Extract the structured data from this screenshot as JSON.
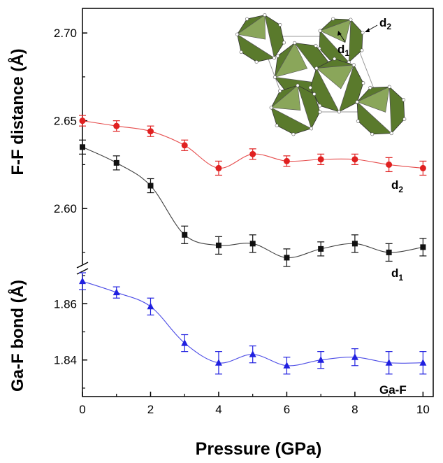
{
  "chart_data": {
    "type": "scatter",
    "xlabel": "Pressure (GPa)",
    "x_ticks": [
      "0",
      "2",
      "4",
      "6",
      "8",
      "10"
    ],
    "xlim": [
      0,
      10.3
    ],
    "panels": [
      {
        "name": "upper",
        "ylabel": "F-F distance (Å)",
        "ylim": [
          2.565,
          2.714
        ],
        "y_ticks": [
          "2.60",
          "2.65",
          "2.70"
        ],
        "series": [
          {
            "name": "d2",
            "label_main": "d",
            "label_sub": "2",
            "color": "#e02020",
            "marker": "circle",
            "x": [
              0,
              1,
              2,
              3,
              4,
              5,
              6,
              7,
              8,
              9,
              10
            ],
            "y": [
              2.65,
              2.647,
              2.644,
              2.636,
              2.623,
              2.631,
              2.627,
              2.628,
              2.628,
              2.625,
              2.623
            ],
            "error": [
              0.003,
              0.003,
              0.003,
              0.003,
              0.004,
              0.003,
              0.003,
              0.003,
              0.003,
              0.004,
              0.004
            ]
          },
          {
            "name": "d1",
            "label_main": "d",
            "label_sub": "1",
            "color": "#111111",
            "marker": "square",
            "x": [
              0,
              1,
              2,
              3,
              4,
              5,
              6,
              7,
              8,
              9,
              10
            ],
            "y": [
              2.635,
              2.626,
              2.613,
              2.585,
              2.579,
              2.58,
              2.572,
              2.577,
              2.58,
              2.575,
              2.578
            ],
            "error": [
              0.004,
              0.004,
              0.004,
              0.005,
              0.005,
              0.005,
              0.005,
              0.004,
              0.005,
              0.005,
              0.005
            ]
          }
        ]
      },
      {
        "name": "lower",
        "ylabel": "Ga-F bond (Å)",
        "ylim": [
          1.827,
          1.872
        ],
        "y_ticks": [
          "1.84",
          "1.86"
        ],
        "series": [
          {
            "name": "Ga-F",
            "label_main": "Ga-F",
            "label_sub": "",
            "color": "#2020e0",
            "marker": "triangle",
            "x": [
              0,
              1,
              2,
              3,
              4,
              5,
              6,
              7,
              8,
              9,
              10
            ],
            "y": [
              1.868,
              1.864,
              1.859,
              1.846,
              1.839,
              1.842,
              1.838,
              1.84,
              1.841,
              1.839,
              1.839
            ],
            "error": [
              0.003,
              0.002,
              0.003,
              0.003,
              0.004,
              0.003,
              0.003,
              0.003,
              0.003,
              0.004,
              0.004
            ]
          }
        ]
      }
    ],
    "inset": {
      "label_d1_main": "d",
      "label_d1_sub": "1",
      "label_d2_main": "d",
      "label_d2_sub": "2",
      "fill_color": "#5a7a2c",
      "white_color": "#ffffff"
    }
  }
}
